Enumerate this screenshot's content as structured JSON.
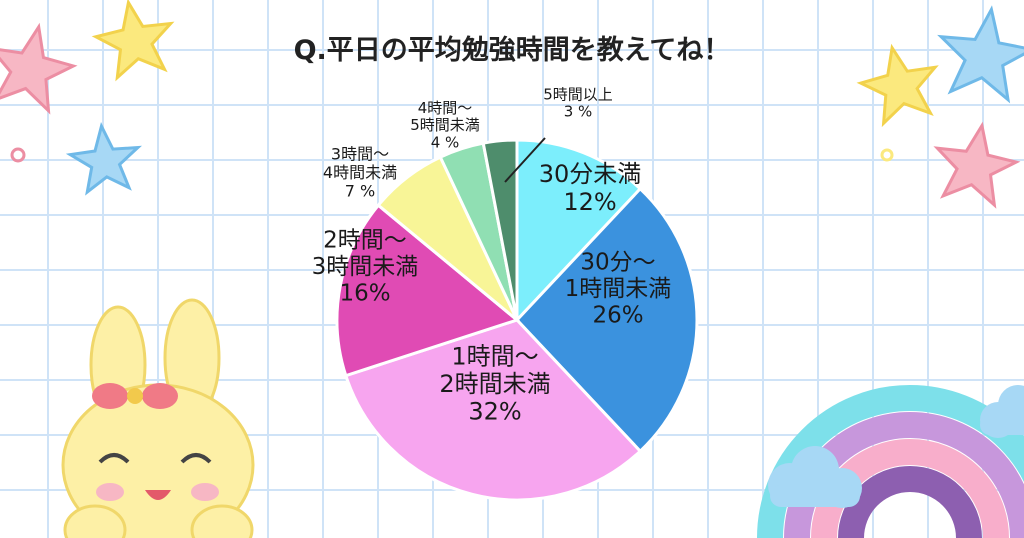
{
  "title": "Q.平日の平均勉強時間を教えてね！",
  "chart_data": {
    "type": "pie",
    "title": "Q.平日の平均勉強時間を教えてね！",
    "slices": [
      {
        "label": "30分未満",
        "value": 12,
        "display": "12%",
        "color": "#7ceefc"
      },
      {
        "label": "30分〜\n1時間未満",
        "value": 26,
        "display": "26%",
        "color": "#3b92de"
      },
      {
        "label": "1時間〜\n2時間未満",
        "value": 32,
        "display": "32%",
        "color": "#f7a5ef"
      },
      {
        "label": "2時間〜\n3時間未満",
        "value": 16,
        "display": "16%",
        "color": "#e04bb4"
      },
      {
        "label": "3時間〜\n4時間未満",
        "value": 7,
        "display": "7 %",
        "color": "#f8f597"
      },
      {
        "label": "4時間〜\n5時間未満",
        "value": 4,
        "display": "4 %",
        "color": "#90dfb3"
      },
      {
        "label": "5時間以上",
        "value": 3,
        "display": "3 %",
        "color": "#4e8d6c"
      }
    ]
  }
}
